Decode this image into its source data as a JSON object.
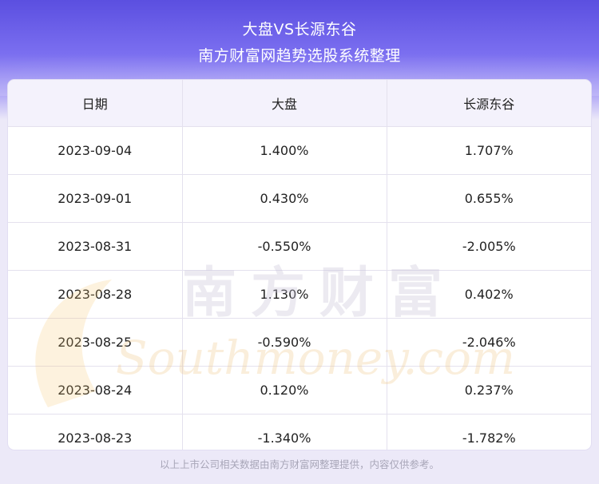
{
  "header": {
    "title": "大盘VS长源东谷",
    "subtitle": "南方财富网趋势选股系统整理"
  },
  "table": {
    "columns": [
      "日期",
      "大盘",
      "长源东谷"
    ],
    "rows": [
      {
        "date": "2023-09-04",
        "market": "1.400%",
        "stock": "1.707%"
      },
      {
        "date": "2023-09-01",
        "market": "0.430%",
        "stock": "0.655%"
      },
      {
        "date": "2023-08-31",
        "market": "-0.550%",
        "stock": "-2.005%"
      },
      {
        "date": "2023-08-28",
        "market": "1.130%",
        "stock": "0.402%"
      },
      {
        "date": "2023-08-25",
        "market": "-0.590%",
        "stock": "-2.046%"
      },
      {
        "date": "2023-08-24",
        "market": "0.120%",
        "stock": "0.237%"
      },
      {
        "date": "2023-08-23",
        "market": "-1.340%",
        "stock": "-1.782%"
      }
    ]
  },
  "watermark": {
    "cn": "南方财富",
    "en": "Southmoney.com"
  },
  "footer": {
    "note": "以上上市公司相关数据由南方财富网整理提供，内容仅供参考。"
  }
}
